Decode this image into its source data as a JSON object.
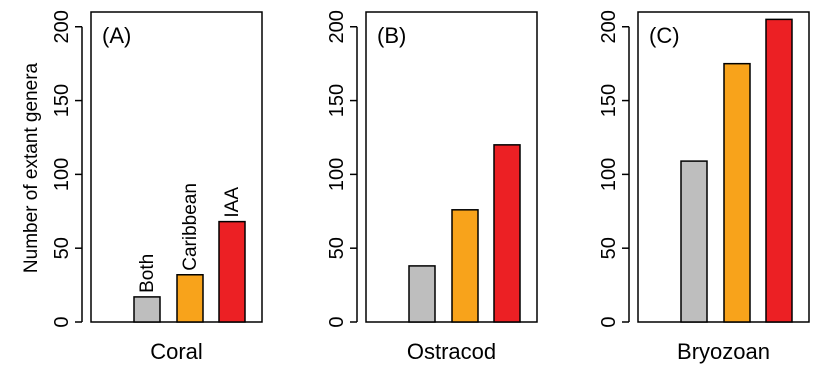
{
  "figure": {
    "ylabel": "Number of extant genera"
  },
  "colors": {
    "Both": "#bebebe",
    "Caribbean": "#f8a31b",
    "IAA": "#ec2024"
  },
  "chart_data": [
    {
      "type": "bar",
      "panel_label": "(A)",
      "xlabel": "Coral",
      "categories": [
        "Both",
        "Caribbean",
        "IAA"
      ],
      "values": [
        17,
        32,
        68
      ],
      "bar_labels": [
        "Both",
        "Caribbean",
        "IAA"
      ],
      "ylim": [
        0,
        210
      ],
      "yticks": [
        0,
        50,
        100,
        150,
        200
      ],
      "ylabel": "Number of extant genera"
    },
    {
      "type": "bar",
      "panel_label": "(B)",
      "xlabel": "Ostracod",
      "categories": [
        "Both",
        "Caribbean",
        "IAA"
      ],
      "values": [
        38,
        76,
        120
      ],
      "ylim": [
        0,
        210
      ],
      "yticks": [
        0,
        50,
        100,
        150,
        200
      ]
    },
    {
      "type": "bar",
      "panel_label": "(C)",
      "xlabel": "Bryozoan",
      "categories": [
        "Both",
        "Caribbean",
        "IAA"
      ],
      "values": [
        109,
        175,
        205
      ],
      "ylim": [
        0,
        210
      ],
      "yticks": [
        0,
        50,
        100,
        150,
        200
      ]
    }
  ]
}
